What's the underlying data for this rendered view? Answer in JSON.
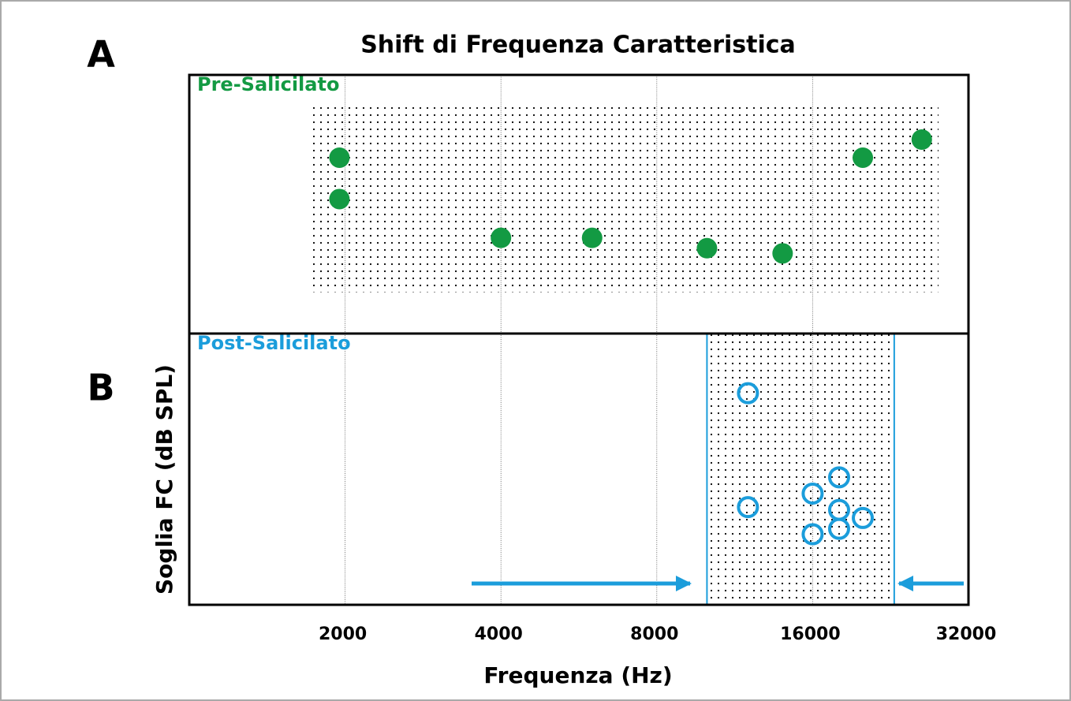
{
  "chart_data": {
    "type": "scatter",
    "title": "Shift di Frequenza Caratteristica",
    "xlabel": "Frequenza (Hz)",
    "ylabel": "Soglia FC (dB SPL)",
    "xscale": "log2",
    "xlim": [
      1000,
      32000
    ],
    "xticks": [
      2000,
      4000,
      8000,
      16000,
      32000
    ],
    "grid": true,
    "panels": [
      {
        "label": "A",
        "name": "Pre-Salicilato",
        "color": "#139a43",
        "marker": "filled",
        "ylim": [
          0,
          100
        ],
        "x": [
          1950,
          1950,
          4000,
          6000,
          10000,
          14000,
          20000,
          26000
        ],
        "y": [
          68,
          52,
          37,
          37,
          33,
          31,
          68,
          75
        ],
        "band_x": [
          1700,
          28000
        ],
        "band_y": [
          16,
          89
        ]
      },
      {
        "label": "B",
        "name": "Post-Salicilato",
        "color": "#1b9ddb",
        "marker": "open",
        "ylim": [
          0,
          100
        ],
        "x": [
          12000,
          12000,
          16000,
          16000,
          18000,
          18000,
          18000,
          20000
        ],
        "y": [
          78,
          36,
          41,
          26,
          47,
          35,
          28,
          32
        ],
        "band_x": [
          10000,
          23000
        ],
        "band_y": [
          0,
          100
        ]
      }
    ]
  }
}
